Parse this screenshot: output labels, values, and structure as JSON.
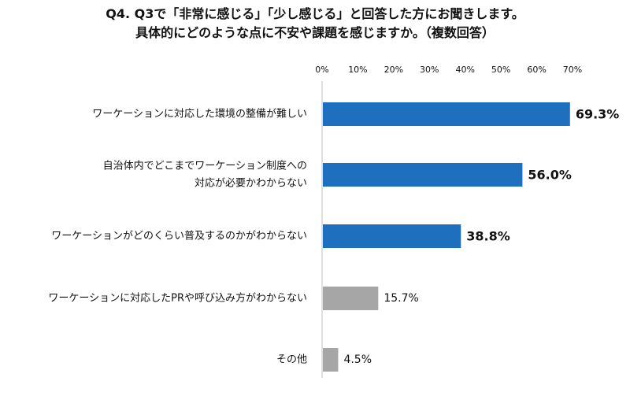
{
  "title_lines": [
    "Q4.  Q3で「非常に感じる」「少し感じる」と回答した方にお聞きします。",
    "具体的にどのような点に不安や課題を感じますか。（複数回答）"
  ],
  "colors": {
    "primary_bar": "#1f6fbf",
    "secondary_bar": "#a6a6a6",
    "axis": "#bfbfbf",
    "text": "#111111"
  },
  "chart_data": {
    "type": "bar",
    "orientation": "horizontal",
    "categories": [
      [
        "ワーケーションに対応した環境の整備が難しい"
      ],
      [
        "自治体内でどこまでワーケーション制度への",
        "対応が必要かわからない"
      ],
      [
        "ワーケーションがどのくらい普及するのかがわからない"
      ],
      [
        "ワーケーションに対応したPRや呼び込み方がわからない"
      ],
      [
        "その他"
      ]
    ],
    "values": [
      69.3,
      56.0,
      38.8,
      15.7,
      4.5
    ],
    "value_labels": [
      "69.3%",
      "56.0%",
      "38.8%",
      "15.7%",
      "4.5%"
    ],
    "highlight": [
      true,
      true,
      true,
      false,
      false
    ],
    "xlim": [
      0,
      70
    ],
    "x_ticks": [
      0,
      10,
      20,
      30,
      40,
      50,
      60,
      70
    ],
    "x_tick_labels": [
      "0%",
      "10%",
      "20%",
      "30%",
      "40%",
      "50%",
      "60%",
      "70%"
    ],
    "grid": false,
    "legend": "none"
  }
}
